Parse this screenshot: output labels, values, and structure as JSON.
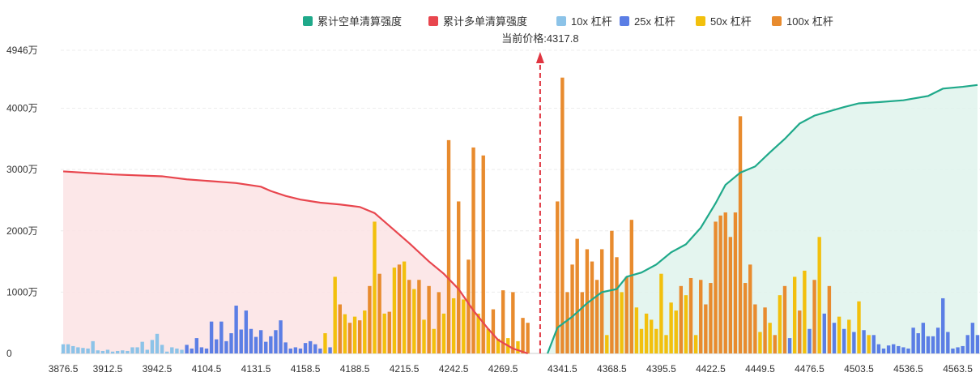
{
  "chart_data": {
    "type": "bar",
    "title": "",
    "current_price_label": "当前价格:4317.8",
    "current_price": 4317.8,
    "legend": [
      {
        "name": "累计空单清算强度",
        "color": "#1fa98a"
      },
      {
        "name": "累计多单清算强度",
        "color": "#e8464e"
      },
      {
        "name": "10x 杠杆",
        "color": "#8cc3e8"
      },
      {
        "name": "25x 杠杆",
        "color": "#5b7ee5"
      },
      {
        "name": "50x 杠杆",
        "color": "#f2c00d"
      },
      {
        "name": "100x 杠杆",
        "color": "#e88b2e"
      }
    ],
    "y_axis": {
      "min": 0,
      "max": 4946,
      "ticks": [
        {
          "value": 0,
          "label": "0"
        },
        {
          "value": 1000,
          "label": "1000万"
        },
        {
          "value": 2000,
          "label": "2000万"
        },
        {
          "value": 3000,
          "label": "3000万"
        },
        {
          "value": 4000,
          "label": "4000万"
        },
        {
          "value": 4946,
          "label": "4946万"
        }
      ]
    },
    "x_axis": {
      "ticks": [
        {
          "index": 0,
          "label": "3876.5"
        },
        {
          "index": 9,
          "label": "3912.5"
        },
        {
          "index": 19,
          "label": "3942.5"
        },
        {
          "index": 29,
          "label": "4104.5"
        },
        {
          "index": 39,
          "label": "4131.5"
        },
        {
          "index": 49,
          "label": "4158.5"
        },
        {
          "index": 59,
          "label": "4188.5"
        },
        {
          "index": 69,
          "label": "4215.5"
        },
        {
          "index": 79,
          "label": "4242.5"
        },
        {
          "index": 89,
          "label": "4269.5"
        },
        {
          "index": 101,
          "label": "4341.5"
        },
        {
          "index": 111,
          "label": "4368.5"
        },
        {
          "index": 121,
          "label": "4395.5"
        },
        {
          "index": 131,
          "label": "4422.5"
        },
        {
          "index": 141,
          "label": "4449.5"
        },
        {
          "index": 151,
          "label": "4476.5"
        },
        {
          "index": 161,
          "label": "4503.5"
        },
        {
          "index": 171,
          "label": "4536.5"
        },
        {
          "index": 181,
          "label": "4563.5"
        }
      ]
    },
    "current_price_index": 97,
    "bar_count": 186,
    "bars": [
      {
        "i": 0,
        "lev": "10x",
        "v": 150
      },
      {
        "i": 1,
        "lev": "10x",
        "v": 150
      },
      {
        "i": 2,
        "lev": "10x",
        "v": 120
      },
      {
        "i": 3,
        "lev": "10x",
        "v": 100
      },
      {
        "i": 4,
        "lev": "10x",
        "v": 90
      },
      {
        "i": 5,
        "lev": "10x",
        "v": 80
      },
      {
        "i": 6,
        "lev": "10x",
        "v": 200
      },
      {
        "i": 7,
        "lev": "10x",
        "v": 50
      },
      {
        "i": 8,
        "lev": "10x",
        "v": 40
      },
      {
        "i": 9,
        "lev": "10x",
        "v": 60
      },
      {
        "i": 10,
        "lev": "10x",
        "v": 30
      },
      {
        "i": 11,
        "lev": "10x",
        "v": 40
      },
      {
        "i": 12,
        "lev": "10x",
        "v": 50
      },
      {
        "i": 13,
        "lev": "10x",
        "v": 40
      },
      {
        "i": 14,
        "lev": "10x",
        "v": 100
      },
      {
        "i": 15,
        "lev": "10x",
        "v": 100
      },
      {
        "i": 16,
        "lev": "10x",
        "v": 190
      },
      {
        "i": 17,
        "lev": "10x",
        "v": 60
      },
      {
        "i": 18,
        "lev": "10x",
        "v": 220
      },
      {
        "i": 19,
        "lev": "10x",
        "v": 320
      },
      {
        "i": 20,
        "lev": "10x",
        "v": 140
      },
      {
        "i": 21,
        "lev": "10x",
        "v": 30
      },
      {
        "i": 22,
        "lev": "10x",
        "v": 100
      },
      {
        "i": 23,
        "lev": "10x",
        "v": 80
      },
      {
        "i": 24,
        "lev": "10x",
        "v": 60
      },
      {
        "i": 25,
        "lev": "25x",
        "v": 140
      },
      {
        "i": 26,
        "lev": "25x",
        "v": 80
      },
      {
        "i": 27,
        "lev": "25x",
        "v": 250
      },
      {
        "i": 28,
        "lev": "25x",
        "v": 100
      },
      {
        "i": 29,
        "lev": "25x",
        "v": 80
      },
      {
        "i": 30,
        "lev": "25x",
        "v": 520
      },
      {
        "i": 31,
        "lev": "25x",
        "v": 230
      },
      {
        "i": 32,
        "lev": "25x",
        "v": 520
      },
      {
        "i": 33,
        "lev": "25x",
        "v": 200
      },
      {
        "i": 34,
        "lev": "25x",
        "v": 330
      },
      {
        "i": 35,
        "lev": "25x",
        "v": 780
      },
      {
        "i": 36,
        "lev": "25x",
        "v": 390
      },
      {
        "i": 37,
        "lev": "25x",
        "v": 700
      },
      {
        "i": 38,
        "lev": "25x",
        "v": 400
      },
      {
        "i": 39,
        "lev": "25x",
        "v": 270
      },
      {
        "i": 40,
        "lev": "25x",
        "v": 380
      },
      {
        "i": 41,
        "lev": "25x",
        "v": 190
      },
      {
        "i": 42,
        "lev": "25x",
        "v": 280
      },
      {
        "i": 43,
        "lev": "25x",
        "v": 380
      },
      {
        "i": 44,
        "lev": "25x",
        "v": 540
      },
      {
        "i": 45,
        "lev": "25x",
        "v": 180
      },
      {
        "i": 46,
        "lev": "25x",
        "v": 80
      },
      {
        "i": 47,
        "lev": "25x",
        "v": 100
      },
      {
        "i": 48,
        "lev": "25x",
        "v": 80
      },
      {
        "i": 49,
        "lev": "25x",
        "v": 170
      },
      {
        "i": 50,
        "lev": "25x",
        "v": 200
      },
      {
        "i": 51,
        "lev": "25x",
        "v": 150
      },
      {
        "i": 52,
        "lev": "25x",
        "v": 80
      },
      {
        "i": 53,
        "lev": "50x",
        "v": 330
      },
      {
        "i": 54,
        "lev": "25x",
        "v": 100
      },
      {
        "i": 55,
        "lev": "50x",
        "v": 1250
      },
      {
        "i": 56,
        "lev": "100x",
        "v": 800
      },
      {
        "i": 57,
        "lev": "50x",
        "v": 640
      },
      {
        "i": 58,
        "lev": "100x",
        "v": 500
      },
      {
        "i": 59,
        "lev": "50x",
        "v": 600
      },
      {
        "i": 60,
        "lev": "100x",
        "v": 540
      },
      {
        "i": 61,
        "lev": "50x",
        "v": 700
      },
      {
        "i": 62,
        "lev": "100x",
        "v": 1100
      },
      {
        "i": 63,
        "lev": "50x",
        "v": 2150
      },
      {
        "i": 64,
        "lev": "100x",
        "v": 1300
      },
      {
        "i": 65,
        "lev": "50x",
        "v": 650
      },
      {
        "i": 66,
        "lev": "100x",
        "v": 680
      },
      {
        "i": 67,
        "lev": "50x",
        "v": 1400
      },
      {
        "i": 68,
        "lev": "100x",
        "v": 1450
      },
      {
        "i": 69,
        "lev": "50x",
        "v": 1500
      },
      {
        "i": 70,
        "lev": "100x",
        "v": 1200
      },
      {
        "i": 71,
        "lev": "50x",
        "v": 1050
      },
      {
        "i": 72,
        "lev": "100x",
        "v": 1200
      },
      {
        "i": 73,
        "lev": "50x",
        "v": 550
      },
      {
        "i": 74,
        "lev": "100x",
        "v": 1100
      },
      {
        "i": 75,
        "lev": "50x",
        "v": 400
      },
      {
        "i": 76,
        "lev": "100x",
        "v": 1000
      },
      {
        "i": 77,
        "lev": "50x",
        "v": 650
      },
      {
        "i": 78,
        "lev": "100x",
        "v": 3480
      },
      {
        "i": 79,
        "lev": "50x",
        "v": 900
      },
      {
        "i": 80,
        "lev": "100x",
        "v": 2480
      },
      {
        "i": 81,
        "lev": "50x",
        "v": 880
      },
      {
        "i": 82,
        "lev": "100x",
        "v": 1530
      },
      {
        "i": 83,
        "lev": "100x",
        "v": 3360
      },
      {
        "i": 84,
        "lev": "50x",
        "v": 650
      },
      {
        "i": 85,
        "lev": "100x",
        "v": 3230
      },
      {
        "i": 86,
        "lev": "50x",
        "v": 400
      },
      {
        "i": 87,
        "lev": "100x",
        "v": 720
      },
      {
        "i": 88,
        "lev": "50x",
        "v": 240
      },
      {
        "i": 89,
        "lev": "100x",
        "v": 1030
      },
      {
        "i": 90,
        "lev": "50x",
        "v": 250
      },
      {
        "i": 91,
        "lev": "100x",
        "v": 1000
      },
      {
        "i": 92,
        "lev": "50x",
        "v": 200
      },
      {
        "i": 93,
        "lev": "100x",
        "v": 580
      },
      {
        "i": 94,
        "lev": "100x",
        "v": 500
      },
      {
        "i": 100,
        "lev": "100x",
        "v": 2480
      },
      {
        "i": 101,
        "lev": "100x",
        "v": 4500
      },
      {
        "i": 102,
        "lev": "100x",
        "v": 1000
      },
      {
        "i": 103,
        "lev": "100x",
        "v": 1450
      },
      {
        "i": 104,
        "lev": "100x",
        "v": 1870
      },
      {
        "i": 105,
        "lev": "100x",
        "v": 1000
      },
      {
        "i": 106,
        "lev": "100x",
        "v": 1700
      },
      {
        "i": 107,
        "lev": "100x",
        "v": 1500
      },
      {
        "i": 108,
        "lev": "100x",
        "v": 1200
      },
      {
        "i": 109,
        "lev": "100x",
        "v": 1700
      },
      {
        "i": 110,
        "lev": "50x",
        "v": 300
      },
      {
        "i": 111,
        "lev": "100x",
        "v": 2000
      },
      {
        "i": 112,
        "lev": "100x",
        "v": 1570
      },
      {
        "i": 113,
        "lev": "50x",
        "v": 1000
      },
      {
        "i": 114,
        "lev": "100x",
        "v": 1250
      },
      {
        "i": 115,
        "lev": "100x",
        "v": 2180
      },
      {
        "i": 116,
        "lev": "50x",
        "v": 750
      },
      {
        "i": 117,
        "lev": "50x",
        "v": 400
      },
      {
        "i": 118,
        "lev": "50x",
        "v": 650
      },
      {
        "i": 119,
        "lev": "50x",
        "v": 550
      },
      {
        "i": 120,
        "lev": "50x",
        "v": 400
      },
      {
        "i": 121,
        "lev": "50x",
        "v": 1300
      },
      {
        "i": 122,
        "lev": "50x",
        "v": 300
      },
      {
        "i": 123,
        "lev": "50x",
        "v": 830
      },
      {
        "i": 124,
        "lev": "50x",
        "v": 700
      },
      {
        "i": 125,
        "lev": "100x",
        "v": 1100
      },
      {
        "i": 126,
        "lev": "50x",
        "v": 950
      },
      {
        "i": 127,
        "lev": "100x",
        "v": 1230
      },
      {
        "i": 128,
        "lev": "50x",
        "v": 300
      },
      {
        "i": 129,
        "lev": "100x",
        "v": 1200
      },
      {
        "i": 130,
        "lev": "100x",
        "v": 800
      },
      {
        "i": 131,
        "lev": "100x",
        "v": 1150
      },
      {
        "i": 132,
        "lev": "100x",
        "v": 2150
      },
      {
        "i": 133,
        "lev": "100x",
        "v": 2250
      },
      {
        "i": 134,
        "lev": "100x",
        "v": 2300
      },
      {
        "i": 135,
        "lev": "100x",
        "v": 1900
      },
      {
        "i": 136,
        "lev": "100x",
        "v": 2300
      },
      {
        "i": 137,
        "lev": "100x",
        "v": 3870
      },
      {
        "i": 138,
        "lev": "100x",
        "v": 1150
      },
      {
        "i": 139,
        "lev": "100x",
        "v": 1450
      },
      {
        "i": 140,
        "lev": "100x",
        "v": 800
      },
      {
        "i": 141,
        "lev": "50x",
        "v": 350
      },
      {
        "i": 142,
        "lev": "100x",
        "v": 750
      },
      {
        "i": 143,
        "lev": "50x",
        "v": 500
      },
      {
        "i": 144,
        "lev": "100x",
        "v": 300
      },
      {
        "i": 145,
        "lev": "50x",
        "v": 950
      },
      {
        "i": 146,
        "lev": "100x",
        "v": 1100
      },
      {
        "i": 147,
        "lev": "25x",
        "v": 250
      },
      {
        "i": 148,
        "lev": "50x",
        "v": 1250
      },
      {
        "i": 149,
        "lev": "100x",
        "v": 700
      },
      {
        "i": 150,
        "lev": "50x",
        "v": 1350
      },
      {
        "i": 151,
        "lev": "25x",
        "v": 400
      },
      {
        "i": 152,
        "lev": "100x",
        "v": 1200
      },
      {
        "i": 153,
        "lev": "50x",
        "v": 1900
      },
      {
        "i": 154,
        "lev": "25x",
        "v": 650
      },
      {
        "i": 155,
        "lev": "100x",
        "v": 1100
      },
      {
        "i": 156,
        "lev": "25x",
        "v": 500
      },
      {
        "i": 157,
        "lev": "50x",
        "v": 600
      },
      {
        "i": 158,
        "lev": "25x",
        "v": 400
      },
      {
        "i": 159,
        "lev": "50x",
        "v": 550
      },
      {
        "i": 160,
        "lev": "25x",
        "v": 350
      },
      {
        "i": 161,
        "lev": "50x",
        "v": 850
      },
      {
        "i": 162,
        "lev": "25x",
        "v": 380
      },
      {
        "i": 163,
        "lev": "50x",
        "v": 300
      },
      {
        "i": 164,
        "lev": "25x",
        "v": 300
      },
      {
        "i": 165,
        "lev": "25x",
        "v": 150
      },
      {
        "i": 166,
        "lev": "25x",
        "v": 80
      },
      {
        "i": 167,
        "lev": "25x",
        "v": 130
      },
      {
        "i": 168,
        "lev": "25x",
        "v": 150
      },
      {
        "i": 169,
        "lev": "25x",
        "v": 120
      },
      {
        "i": 170,
        "lev": "25x",
        "v": 100
      },
      {
        "i": 171,
        "lev": "25x",
        "v": 80
      },
      {
        "i": 172,
        "lev": "25x",
        "v": 420
      },
      {
        "i": 173,
        "lev": "25x",
        "v": 330
      },
      {
        "i": 174,
        "lev": "25x",
        "v": 500
      },
      {
        "i": 175,
        "lev": "25x",
        "v": 280
      },
      {
        "i": 176,
        "lev": "25x",
        "v": 280
      },
      {
        "i": 177,
        "lev": "25x",
        "v": 420
      },
      {
        "i": 178,
        "lev": "25x",
        "v": 900
      },
      {
        "i": 179,
        "lev": "25x",
        "v": 350
      },
      {
        "i": 180,
        "lev": "25x",
        "v": 80
      },
      {
        "i": 181,
        "lev": "25x",
        "v": 100
      },
      {
        "i": 182,
        "lev": "25x",
        "v": 120
      },
      {
        "i": 183,
        "lev": "25x",
        "v": 300
      },
      {
        "i": 184,
        "lev": "25x",
        "v": 500
      },
      {
        "i": 185,
        "lev": "25x",
        "v": 300
      }
    ],
    "long_cumulative": [
      [
        0,
        2970
      ],
      [
        10,
        2920
      ],
      [
        20,
        2890
      ],
      [
        25,
        2840
      ],
      [
        30,
        2810
      ],
      [
        35,
        2780
      ],
      [
        40,
        2720
      ],
      [
        42,
        2650
      ],
      [
        45,
        2570
      ],
      [
        48,
        2510
      ],
      [
        52,
        2460
      ],
      [
        56,
        2430
      ],
      [
        60,
        2390
      ],
      [
        63,
        2290
      ],
      [
        66,
        2080
      ],
      [
        70,
        1800
      ],
      [
        74,
        1500
      ],
      [
        77,
        1300
      ],
      [
        80,
        1050
      ],
      [
        83,
        700
      ],
      [
        86,
        400
      ],
      [
        88,
        220
      ],
      [
        91,
        80
      ],
      [
        94,
        0
      ]
    ],
    "short_cumulative": [
      [
        98,
        0
      ],
      [
        100,
        420
      ],
      [
        103,
        600
      ],
      [
        106,
        820
      ],
      [
        109,
        1000
      ],
      [
        112,
        1050
      ],
      [
        114,
        1250
      ],
      [
        117,
        1320
      ],
      [
        120,
        1450
      ],
      [
        123,
        1650
      ],
      [
        126,
        1780
      ],
      [
        129,
        2050
      ],
      [
        132,
        2450
      ],
      [
        134,
        2750
      ],
      [
        137,
        2950
      ],
      [
        140,
        3050
      ],
      [
        143,
        3280
      ],
      [
        146,
        3500
      ],
      [
        149,
        3750
      ],
      [
        152,
        3880
      ],
      [
        155,
        3950
      ],
      [
        158,
        4020
      ],
      [
        161,
        4080
      ],
      [
        165,
        4100
      ],
      [
        170,
        4130
      ],
      [
        175,
        4200
      ],
      [
        178,
        4320
      ],
      [
        182,
        4350
      ],
      [
        185,
        4380
      ]
    ]
  }
}
